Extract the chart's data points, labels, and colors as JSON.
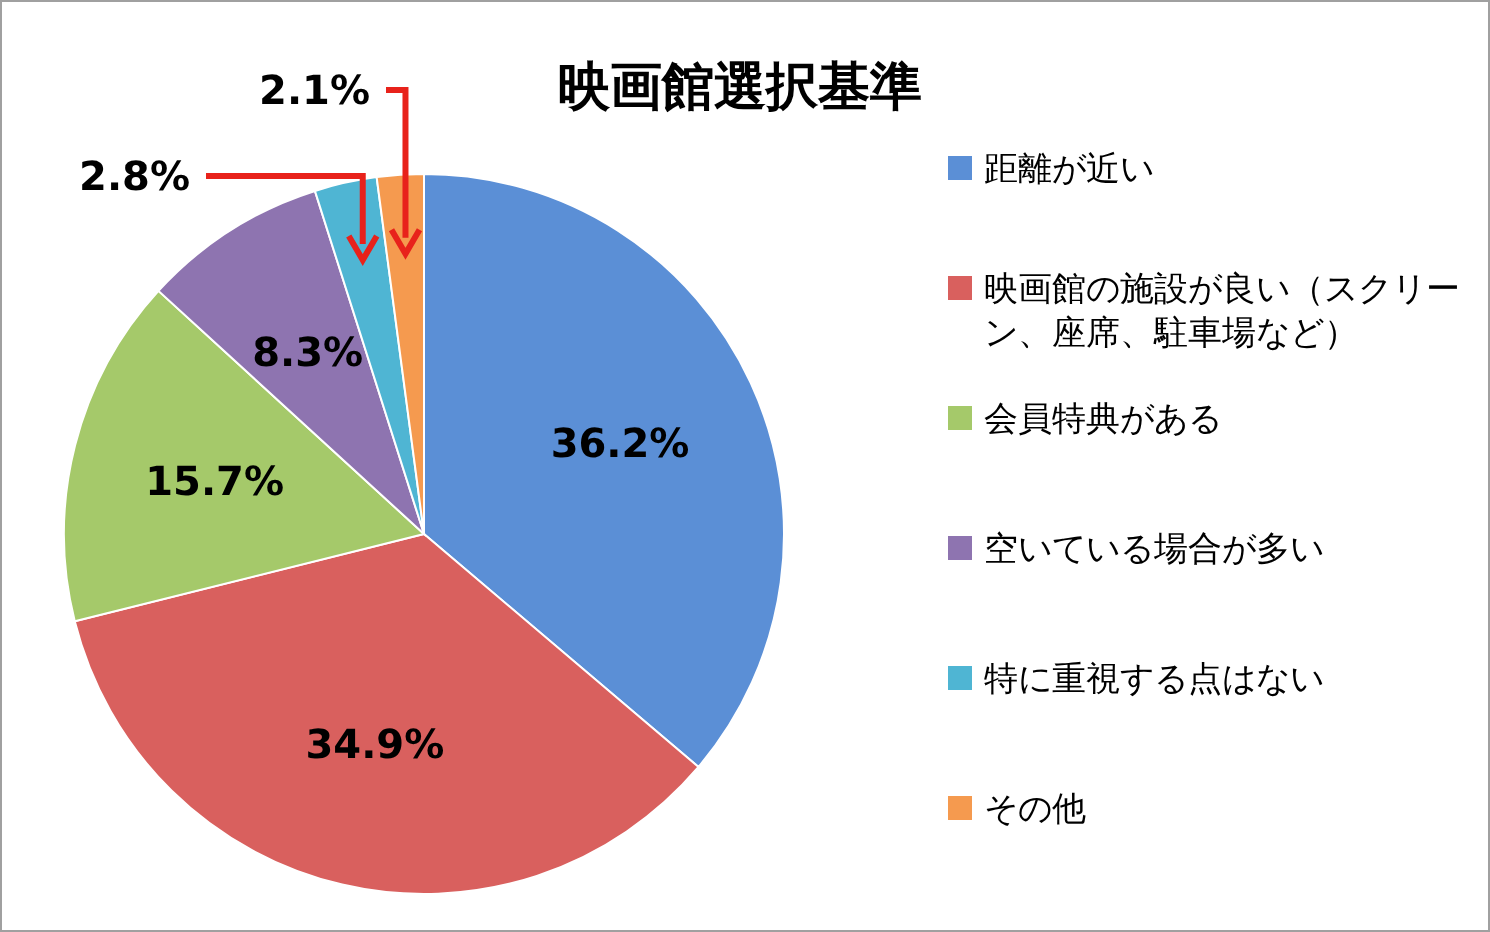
{
  "chart_data": {
    "type": "pie",
    "title": "映画館選択基準",
    "categories": [
      "距離が近い",
      "映画館の施設が良い（スクリーン、座席、駐車場など）",
      "会員特典がある",
      "空いている場合が多い",
      "特に重視する点はない",
      "その他"
    ],
    "values": [
      36.2,
      34.9,
      15.7,
      8.3,
      2.8,
      2.1
    ],
    "value_labels": [
      "36.2%",
      "34.9%",
      "15.7%",
      "8.3%",
      "2.8%",
      "2.1%"
    ],
    "colors": [
      "#5b8fd6",
      "#d9605e",
      "#a5c96a",
      "#8e74b0",
      "#4fb5d3",
      "#f59a4f"
    ],
    "legend": "right"
  }
}
